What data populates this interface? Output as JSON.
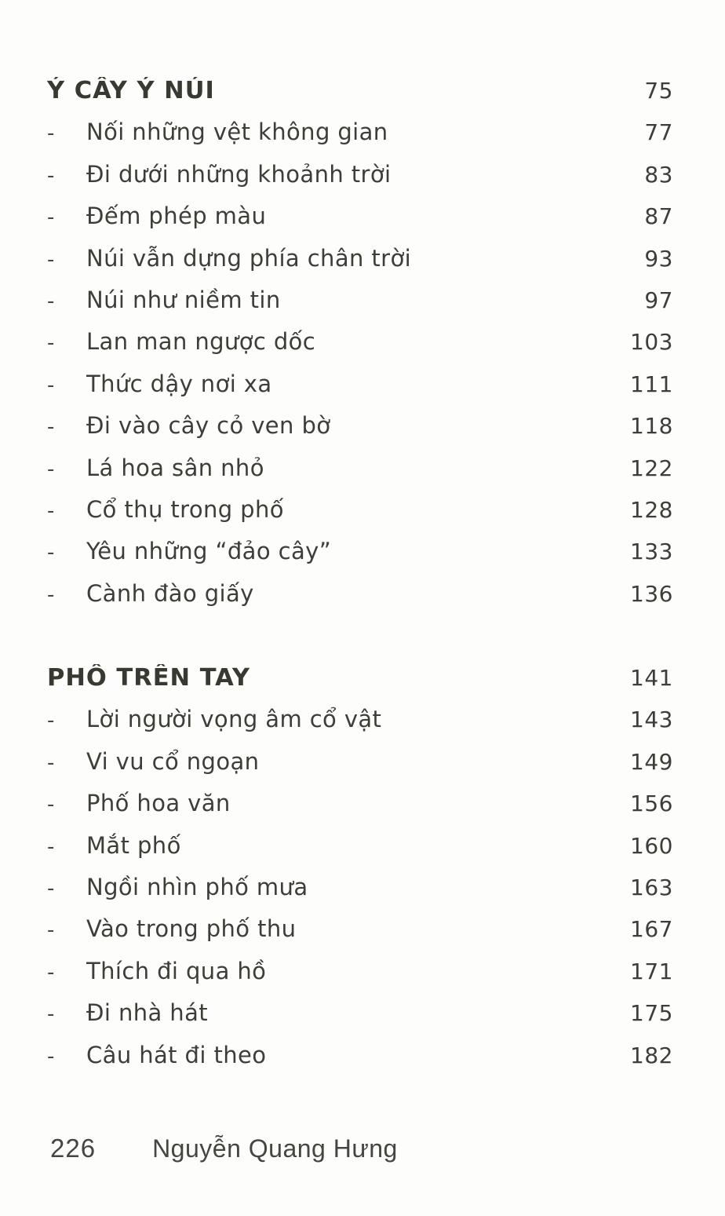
{
  "marks": {
    "dash": "-"
  },
  "sections": [
    {
      "title": "Ý CÂY Ý NÚI",
      "page": "75",
      "items": [
        {
          "title": "Nối những vệt không gian",
          "page": "77"
        },
        {
          "title": "Đi dưới những khoảnh trời",
          "page": "83"
        },
        {
          "title": "Đếm phép màu",
          "page": "87"
        },
        {
          "title": "Núi vẫn dựng phía chân trời",
          "page": "93"
        },
        {
          "title": "Núi như niềm tin",
          "page": "97"
        },
        {
          "title": "Lan man ngược dốc",
          "page": "103"
        },
        {
          "title": "Thức dậy nơi xa",
          "page": "111"
        },
        {
          "title": "Đi vào cây cỏ ven bờ",
          "page": "118"
        },
        {
          "title": "Lá hoa sân nhỏ",
          "page": "122"
        },
        {
          "title": "Cổ thụ trong phố",
          "page": "128"
        },
        {
          "title": "Yêu những “đảo cây”",
          "page": "133"
        },
        {
          "title": "Cành đào giấy",
          "page": "136"
        }
      ]
    },
    {
      "title": "PHỐ TRÊN TAY",
      "page": "141",
      "items": [
        {
          "title": "Lời người vọng âm cổ vật",
          "page": "143"
        },
        {
          "title": "Vi vu cổ ngoạn",
          "page": "149"
        },
        {
          "title": "Phố hoa văn",
          "page": "156"
        },
        {
          "title": "Mắt phố",
          "page": "160"
        },
        {
          "title": "Ngồi nhìn phố mưa",
          "page": "163"
        },
        {
          "title": "Vào trong phố thu",
          "page": "167"
        },
        {
          "title": "Thích đi qua hồ",
          "page": "171"
        },
        {
          "title": "Đi nhà hát",
          "page": "175"
        },
        {
          "title": "Câu hát đi theo",
          "page": "182"
        }
      ]
    }
  ],
  "footer": {
    "page_number": "226",
    "author": "Nguyễn Quang Hưng"
  },
  "colors": {
    "text": "#3c3f37",
    "heading": "#373a30",
    "background": "#fdfdfb"
  }
}
